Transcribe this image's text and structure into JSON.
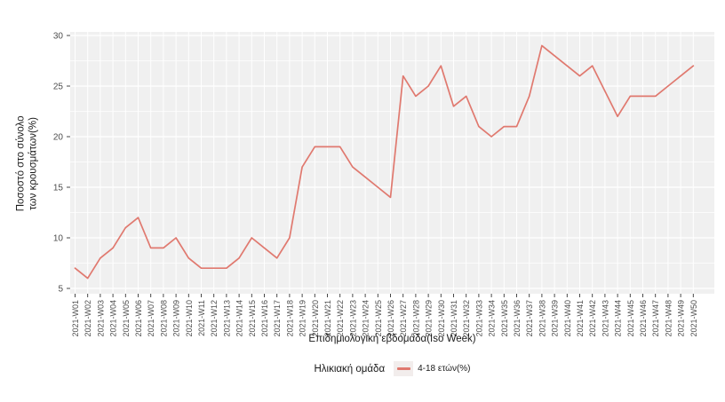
{
  "chart_data": {
    "type": "line",
    "title": "",
    "xlabel": "Επιδημιολογική εβδομάδα(Iso Week)",
    "ylabel": "Ποσοστό στο σύνολο των κρουσμάτων(%)",
    "ylim": [
      5,
      30
    ],
    "yticks": [
      5,
      10,
      15,
      20,
      25,
      30
    ],
    "yticks_minor": [
      7.5,
      12.5,
      17.5,
      22.5,
      27.5
    ],
    "grid": "on",
    "panel_bg": "#F0F0F0",
    "grid_color": "#FFFFFF",
    "tick_text_color": "#4d4d4d",
    "x": [
      "2021-W01",
      "2021-W02",
      "2021-W03",
      "2021-W04",
      "2021-W05",
      "2021-W06",
      "2021-W07",
      "2021-W08",
      "2021-W09",
      "2021-W10",
      "2021-W11",
      "2021-W12",
      "2021-W13",
      "2021-W14",
      "2021-W15",
      "2021-W16",
      "2021-W17",
      "2021-W18",
      "2021-W19",
      "2021-W20",
      "2021-W21",
      "2021-W22",
      "2021-W23",
      "2021-W24",
      "2021-W25",
      "2021-W26",
      "2021-W27",
      "2021-W28",
      "2021-W29",
      "2021-W30",
      "2021-W31",
      "2021-W32",
      "2021-W33",
      "2021-W34",
      "2021-W35",
      "2021-W36",
      "2021-W37",
      "2021-W38",
      "2021-W39",
      "2021-W40",
      "2021-W41",
      "2021-W42",
      "2021-W43",
      "2021-W44",
      "2021-W45",
      "2021-W46",
      "2021-W47",
      "2021-W48",
      "2021-W49",
      "2021-W50"
    ],
    "series": [
      {
        "name": "4-18 ετών(%)",
        "color": "#E0796F",
        "values": [
          7,
          6,
          8,
          9,
          11,
          12,
          9,
          9,
          10,
          8,
          7,
          7,
          7,
          8,
          10,
          9,
          8,
          10,
          17,
          19,
          19,
          19,
          17,
          16,
          15,
          14,
          26,
          24,
          25,
          27,
          23,
          24,
          21,
          20,
          21,
          21,
          24,
          29,
          28,
          27,
          26,
          27,
          24.5,
          22,
          24,
          24,
          24,
          25,
          26,
          27
        ]
      }
    ],
    "legend": {
      "title": "Ηλικιακή ομάδα",
      "position": "bottom",
      "entries": [
        "4-18 ετών(%)"
      ]
    }
  }
}
